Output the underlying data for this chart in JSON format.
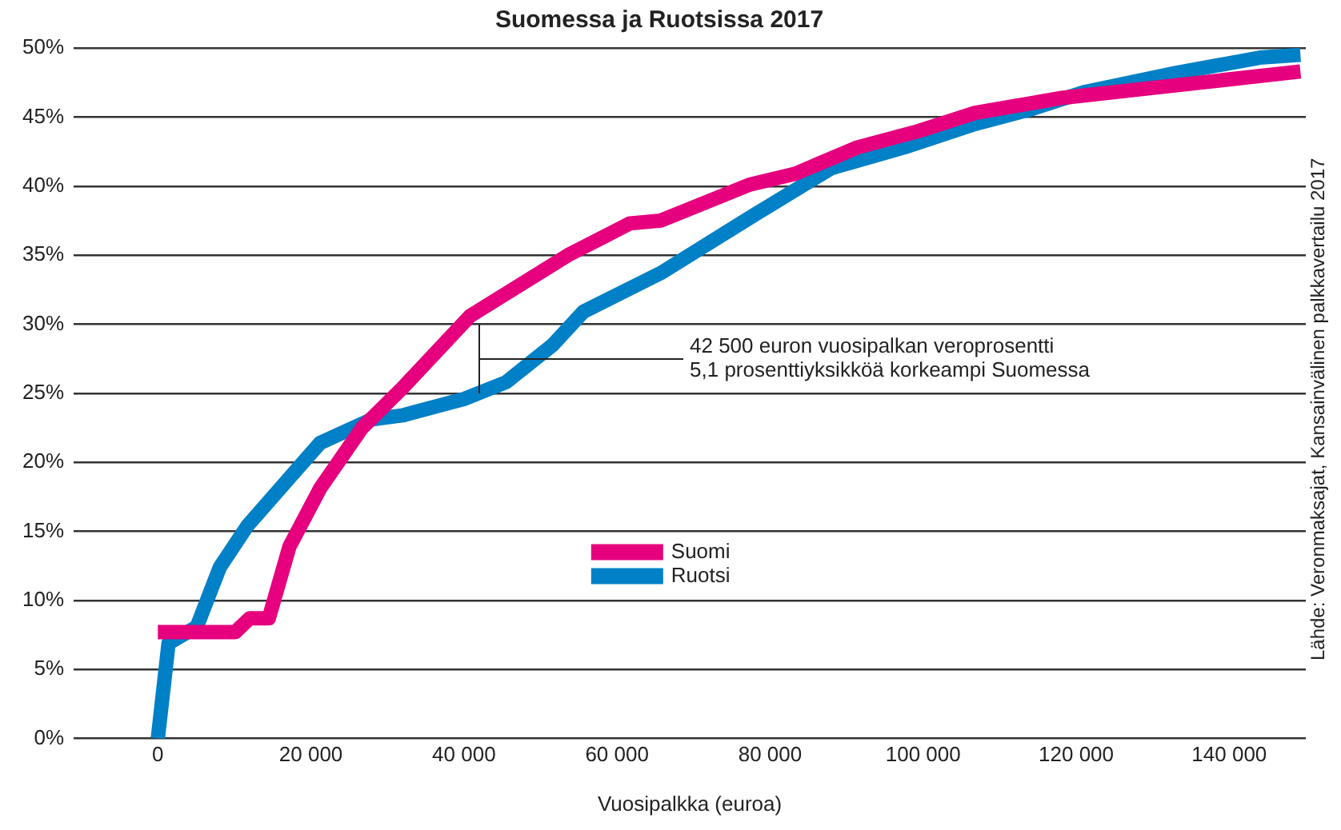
{
  "chart_data": {
    "type": "line",
    "title": "Suomessa ja Ruotsissa 2017",
    "xlabel": "Vuosipalkka (euroa)",
    "xlim": [
      -11000,
      150000
    ],
    "xticks": [
      {
        "value": 0,
        "label": "0"
      },
      {
        "value": 20000,
        "label": "20 000"
      },
      {
        "value": 40000,
        "label": "40 000"
      },
      {
        "value": 60000,
        "label": "60 000"
      },
      {
        "value": 80000,
        "label": "80 000"
      },
      {
        "value": 100000,
        "label": "100 000"
      },
      {
        "value": 120000,
        "label": "120 000"
      },
      {
        "value": 140000,
        "label": "140 000"
      }
    ],
    "ylim": [
      0,
      50
    ],
    "yticks": [
      {
        "value": 0,
        "label": "0%"
      },
      {
        "value": 5,
        "label": "5%"
      },
      {
        "value": 10,
        "label": "10%"
      },
      {
        "value": 15,
        "label": "15%"
      },
      {
        "value": 20,
        "label": "20%"
      },
      {
        "value": 25,
        "label": "25%"
      },
      {
        "value": 30,
        "label": "30%"
      },
      {
        "value": 35,
        "label": "35%"
      },
      {
        "value": 40,
        "label": "40%"
      },
      {
        "value": 45,
        "label": "45%"
      },
      {
        "value": 50,
        "label": "50%"
      }
    ],
    "grid": "y",
    "legend": "center",
    "marker": "none",
    "line_style": "solid",
    "series": [
      {
        "name": "Suomi",
        "color": "#e6007e",
        "x": [
          0,
          10100,
          12000,
          14500,
          17200,
          21200,
          26700,
          32000,
          40800,
          53600,
          61700,
          65700,
          77300,
          83300,
          91400,
          99500,
          106800,
          118300,
          133100,
          149300
        ],
        "values": [
          7.7,
          7.7,
          8.7,
          8.7,
          13.9,
          18.1,
          22.5,
          25.4,
          30.6,
          35.0,
          37.3,
          37.5,
          40.1,
          40.9,
          42.8,
          44.0,
          45.3,
          46.4,
          47.3,
          48.3
        ]
      },
      {
        "name": "Ruotsi",
        "color": "#0080c6",
        "x": [
          0,
          1400,
          5100,
          8100,
          11700,
          16600,
          21200,
          27900,
          32000,
          40100,
          45500,
          51600,
          55600,
          65700,
          77900,
          88000,
          97500,
          106800,
          114300,
          121000,
          133100,
          144000,
          149300
        ],
        "values": [
          0,
          6.9,
          8.1,
          12.4,
          15.4,
          18.5,
          21.4,
          23.1,
          23.4,
          24.6,
          25.8,
          28.5,
          30.9,
          33.7,
          37.9,
          41.3,
          42.8,
          44.5,
          45.6,
          46.8,
          48.2,
          49.3,
          49.5
        ]
      }
    ],
    "annotations": [
      "42 500 euron vuosipalkan veroprosentti\n5,1 prosenttiyksikköä korkeampi Suomessa",
      "Lähde: Veronmaksajat, Kansainvälinen palkkavertailu 2017"
    ]
  }
}
